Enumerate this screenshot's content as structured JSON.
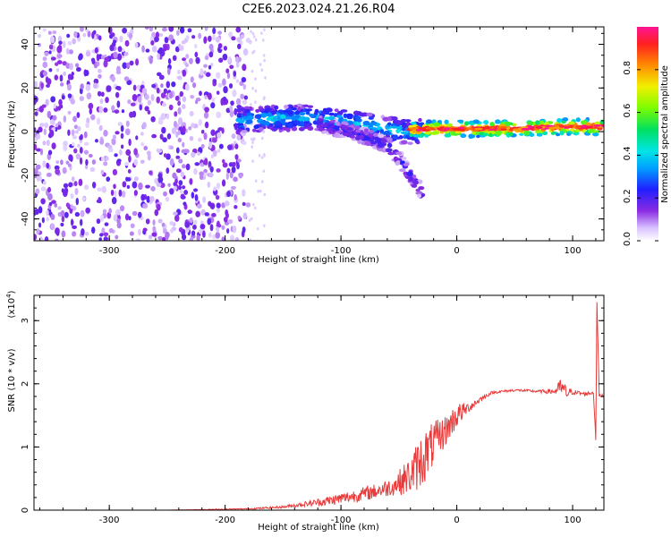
{
  "title": "C2E6.2023.024.21.26.R04",
  "chart_data": [
    {
      "type": "heatmap",
      "xlabel": "Height of straight line (km)",
      "ylabel": "Frequency (Hz)",
      "xlim": [
        -365,
        127
      ],
      "ylim": [
        -50,
        48
      ],
      "x_ticks": [
        "-300",
        "-200",
        "-100",
        "0",
        "100"
      ],
      "y_ticks": [
        "-40",
        "-20",
        "0",
        "20",
        "40"
      ],
      "colorbar": {
        "label": "Normalized spectral amplitude",
        "range": [
          0,
          1
        ],
        "ticks": [
          "0.0",
          "0.2",
          "0.4",
          "0.6",
          "0.8"
        ]
      },
      "features": [
        {
          "label": "noise",
          "x_range": [
            -365,
            -180
          ],
          "freq_range": [
            -50,
            48
          ],
          "amplitude": 0.15
        },
        {
          "label": "upper-branch",
          "x": [
            -190,
            -160,
            -130,
            -100,
            -80,
            -60,
            -45,
            -30
          ],
          "freq": [
            5,
            6,
            6.5,
            5,
            3,
            1,
            0,
            0
          ],
          "amplitude": 0.35
        },
        {
          "label": "lower-branch",
          "x": [
            -120,
            -100,
            -80,
            -60,
            -50,
            -40,
            -30
          ],
          "freq": [
            4,
            1,
            -2,
            -6,
            -12,
            -20,
            -28
          ],
          "amplitude": 0.2
        },
        {
          "label": "carrier",
          "x": [
            -40,
            -20,
            0,
            20,
            40,
            60,
            80,
            100,
            127
          ],
          "freq": [
            1,
            1.2,
            1.3,
            1.3,
            1.4,
            1.6,
            2.0,
            2.2,
            2.2
          ],
          "amplitude": 0.9
        }
      ]
    },
    {
      "type": "line",
      "xlabel": "Height of straight line (km)",
      "ylabel": "SNR (10 * v/v)",
      "yscale_label": "(x10",
      "yscale_exp": "4",
      "yscale_close": ")",
      "xlim": [
        -365,
        127
      ],
      "ylim": [
        0,
        3.4
      ],
      "x_ticks": [
        "-300",
        "-200",
        "-100",
        "0",
        "100"
      ],
      "y_ticks": [
        "0",
        "1",
        "2",
        "3"
      ],
      "series": [
        {
          "color": "#e83a3a",
          "x": [
            -365,
            -250,
            -180,
            -150,
            -130,
            -110,
            -90,
            -70,
            -55,
            -40,
            -30,
            -20,
            -10,
            0,
            10,
            20,
            30,
            50,
            70,
            85,
            90,
            95,
            100,
            110,
            118,
            120,
            121,
            123,
            127
          ],
          "y": [
            0.0,
            0.0,
            0.02,
            0.05,
            0.1,
            0.15,
            0.22,
            0.3,
            0.38,
            0.55,
            0.8,
            1.05,
            1.25,
            1.5,
            1.62,
            1.75,
            1.86,
            1.9,
            1.88,
            1.88,
            1.95,
            1.85,
            1.87,
            1.84,
            1.86,
            1.15,
            3.3,
            1.8,
            1.82
          ],
          "noise": [
            0,
            0,
            0.01,
            0.02,
            0.04,
            0.08,
            0.1,
            0.12,
            0.15,
            0.3,
            0.45,
            0.35,
            0.25,
            0.2,
            0.08,
            0.05,
            0.02,
            0.02,
            0.02,
            0.05,
            0.15,
            0.1,
            0.04,
            0.03,
            0.03,
            0.05,
            0.05,
            0.03,
            0.02
          ]
        }
      ]
    }
  ]
}
